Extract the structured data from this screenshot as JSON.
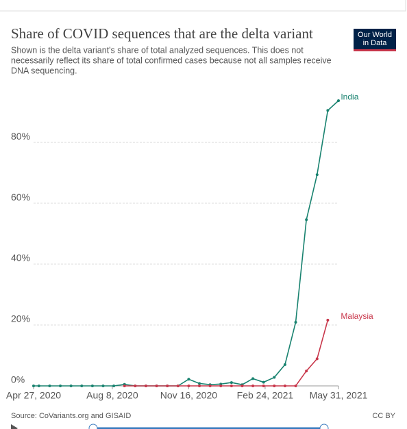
{
  "chart_data": {
    "type": "line",
    "title": "Share of COVID sequences that are the delta variant",
    "subtitle": [
      "Shown is the delta variant's share of total analyzed sequences. This does not",
      "necessarily reflect its share of total confirmed cases because not all samples receive",
      "DNA sequencing."
    ],
    "logo": [
      "Our World",
      "in Data"
    ],
    "source": "Source: CoVariants.org and GISAID",
    "license": "CC BY",
    "x": [
      "2020-04-27",
      "2020-05-04",
      "2020-05-18",
      "2020-06-01",
      "2020-06-15",
      "2020-06-29",
      "2020-07-13",
      "2020-07-27",
      "2020-08-10",
      "2020-08-24",
      "2020-09-07",
      "2020-09-21",
      "2020-10-05",
      "2020-10-19",
      "2020-11-02",
      "2020-11-16",
      "2020-11-30",
      "2020-12-14",
      "2020-12-28",
      "2021-01-11",
      "2021-01-25",
      "2021-02-08",
      "2021-02-22",
      "2021-03-08",
      "2021-03-22",
      "2021-04-05",
      "2021-04-19",
      "2021-05-03",
      "2021-05-17",
      "2021-05-31"
    ],
    "series": [
      {
        "name": "India",
        "color": "#18826f",
        "values": [
          0,
          0,
          0,
          0,
          0,
          0,
          0,
          0,
          0,
          0.5,
          0,
          0,
          0,
          0,
          0,
          2.2,
          0.8,
          0.4,
          0.6,
          1.1,
          0.4,
          2.4,
          1.2,
          2.8,
          7,
          20.9,
          54.6,
          69.4,
          90.5,
          93.7
        ]
      },
      {
        "name": "Malaysia",
        "color": "#c8364a",
        "values": [
          null,
          null,
          null,
          null,
          null,
          null,
          null,
          null,
          null,
          0,
          0,
          0,
          0,
          0,
          0,
          0,
          0,
          0,
          0,
          0,
          0,
          0,
          0,
          0,
          0,
          0,
          4.9,
          8.9,
          21.6,
          null
        ]
      }
    ],
    "end_label_x": "2021-06-03",
    "xlim": [
      "2020-04-27",
      "2021-05-31"
    ],
    "xticks": [
      {
        "value": "2020-04-27",
        "label": "Apr 27, 2020"
      },
      {
        "value": "2020-08-08",
        "label": "Aug 8, 2020"
      },
      {
        "value": "2020-11-16",
        "label": "Nov 16, 2020"
      },
      {
        "value": "2021-02-24",
        "label": "Feb 24, 2021"
      },
      {
        "value": "2021-05-31",
        "label": "May 31, 2021"
      }
    ],
    "ylim": [
      0,
      98
    ],
    "yticks": [
      {
        "value": 0,
        "label": "0%"
      },
      {
        "value": 20,
        "label": "20%"
      },
      {
        "value": 40,
        "label": "40%"
      },
      {
        "value": 60,
        "label": "60%"
      },
      {
        "value": 80,
        "label": "80%"
      }
    ],
    "grid": true
  }
}
